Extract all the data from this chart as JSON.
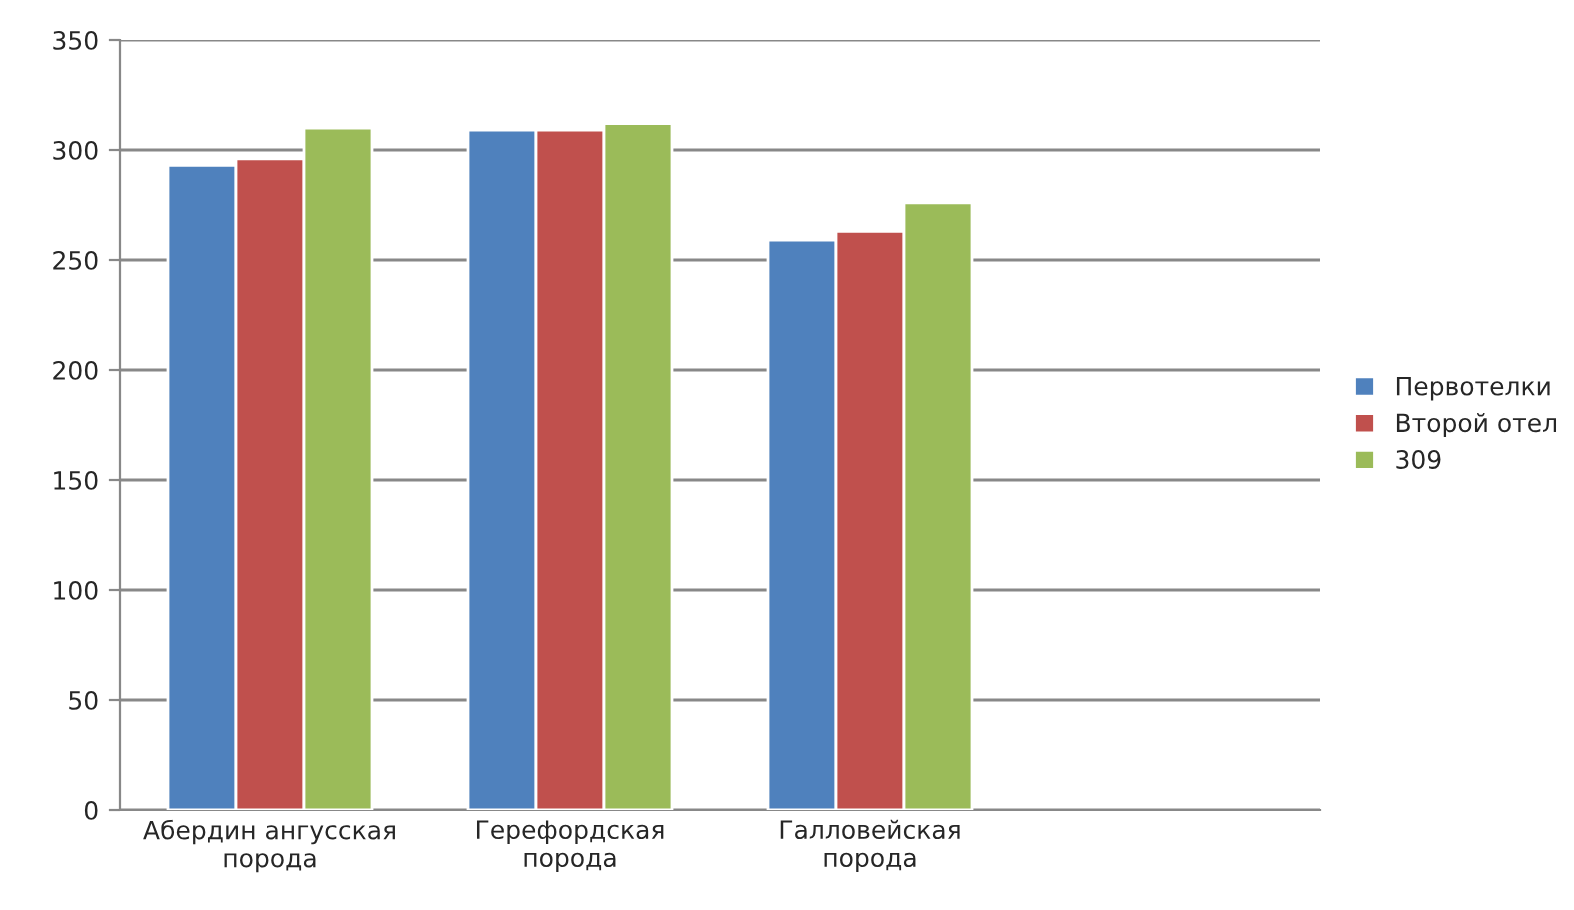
{
  "chart_data": {
    "type": "bar",
    "categories": [
      "Абердин ангусская\nпорода",
      "Герефордская\nпорода",
      "Галловейская\nпорода",
      null
    ],
    "series": [
      {
        "name": "Первотелки",
        "color": "#4f81bd",
        "values": [
          293,
          309,
          259,
          null
        ]
      },
      {
        "name": "Второй отел",
        "color": "#c0504d",
        "values": [
          296,
          309,
          263,
          null
        ]
      },
      {
        "name": "309",
        "color": "#9bbb59",
        "values": [
          310,
          312,
          276,
          null
        ]
      }
    ],
    "ylim": [
      0,
      350
    ],
    "yticks": [
      0,
      50,
      100,
      150,
      200,
      250,
      300,
      350
    ],
    "grid": "y",
    "legend": "right"
  }
}
